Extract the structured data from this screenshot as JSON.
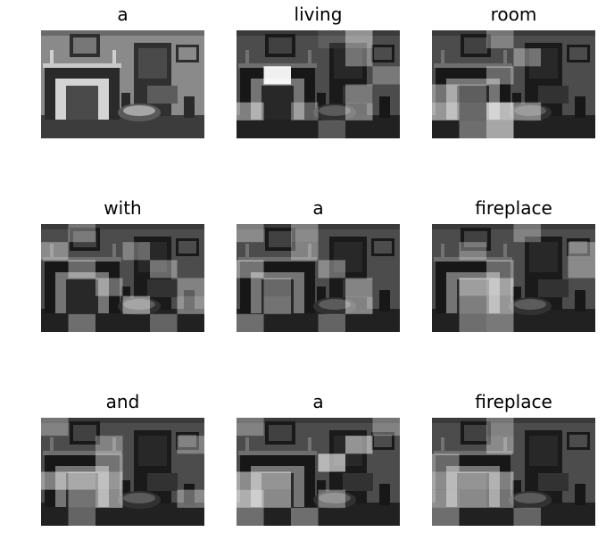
{
  "words": [
    "a",
    "living",
    "room",
    "with",
    "a",
    "fireplace",
    "and",
    "a",
    "fireplace"
  ],
  "scene_description_icon": "grayscale-living-room-with-fireplace",
  "colors": {
    "background": "#ffffff",
    "text": "#000000"
  },
  "attention_maps": [
    {
      "base_only": true,
      "bright": []
    },
    {
      "bright": [
        [
          4,
          0.45
        ],
        [
          3,
          0.1
        ],
        [
          10,
          0.35
        ],
        [
          13,
          0.75
        ],
        [
          13,
          0.75
        ],
        [
          17,
          0.25
        ],
        [
          22,
          0.35
        ],
        [
          24,
          0.45
        ],
        [
          26,
          0.3
        ],
        [
          28,
          0.4
        ],
        [
          33,
          0.25
        ]
      ]
    },
    {
      "bright": [
        [
          2,
          0.3
        ],
        [
          9,
          0.35
        ],
        [
          14,
          0.35
        ],
        [
          18,
          0.4
        ],
        [
          19,
          0.25
        ],
        [
          24,
          0.55
        ],
        [
          25,
          0.3
        ],
        [
          26,
          0.7
        ],
        [
          27,
          0.4
        ],
        [
          31,
          0.35
        ],
        [
          32,
          0.6
        ]
      ]
    },
    {
      "bright": [
        [
          1,
          0.3
        ],
        [
          6,
          0.35
        ],
        [
          9,
          0.3
        ],
        [
          13,
          0.35
        ],
        [
          16,
          0.35
        ],
        [
          20,
          0.35
        ],
        [
          23,
          0.3
        ],
        [
          27,
          0.45
        ],
        [
          29,
          0.4
        ],
        [
          31,
          0.35
        ],
        [
          34,
          0.3
        ]
      ]
    },
    {
      "bright": [
        [
          0,
          0.35
        ],
        [
          2,
          0.35
        ],
        [
          8,
          0.3
        ],
        [
          12,
          0.4
        ],
        [
          15,
          0.35
        ],
        [
          19,
          0.3
        ],
        [
          22,
          0.4
        ],
        [
          25,
          0.35
        ],
        [
          28,
          0.45
        ],
        [
          30,
          0.35
        ],
        [
          33,
          0.3
        ]
      ]
    },
    {
      "bright": [
        [
          3,
          0.3
        ],
        [
          7,
          0.3
        ],
        [
          11,
          0.35
        ],
        [
          14,
          0.35
        ],
        [
          17,
          0.35
        ],
        [
          19,
          0.55
        ],
        [
          20,
          0.6
        ],
        [
          25,
          0.4
        ],
        [
          26,
          0.55
        ],
        [
          31,
          0.35
        ],
        [
          32,
          0.4
        ]
      ]
    },
    {
      "bright": [
        [
          0,
          0.3
        ],
        [
          8,
          0.3
        ],
        [
          11,
          0.3
        ],
        [
          14,
          0.4
        ],
        [
          18,
          0.45
        ],
        [
          19,
          0.6
        ],
        [
          20,
          0.55
        ],
        [
          25,
          0.35
        ],
        [
          26,
          0.5
        ],
        [
          29,
          0.35
        ],
        [
          31,
          0.3
        ]
      ]
    },
    {
      "bright": [
        [
          0,
          0.3
        ],
        [
          5,
          0.3
        ],
        [
          10,
          0.5
        ],
        [
          15,
          0.6
        ],
        [
          18,
          0.5
        ],
        [
          19,
          0.5
        ],
        [
          24,
          0.65
        ],
        [
          25,
          0.45
        ],
        [
          27,
          0.35
        ],
        [
          30,
          0.35
        ],
        [
          32,
          0.35
        ]
      ]
    },
    {
      "bright": [
        [
          2,
          0.3
        ],
        [
          8,
          0.35
        ],
        [
          12,
          0.35
        ],
        [
          18,
          0.5
        ],
        [
          19,
          0.5
        ],
        [
          20,
          0.45
        ],
        [
          24,
          0.5
        ],
        [
          25,
          0.45
        ],
        [
          26,
          0.4
        ],
        [
          30,
          0.35
        ],
        [
          33,
          0.3
        ]
      ]
    }
  ]
}
